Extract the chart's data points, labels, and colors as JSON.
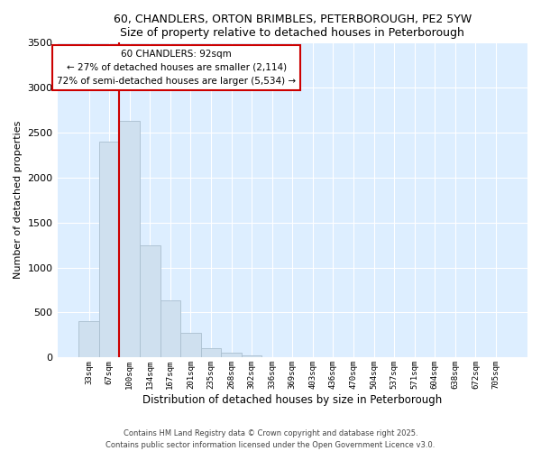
{
  "title": "60, CHANDLERS, ORTON BRIMBLES, PETERBOROUGH, PE2 5YW",
  "subtitle": "Size of property relative to detached houses in Peterborough",
  "xlabel": "Distribution of detached houses by size in Peterborough",
  "ylabel": "Number of detached properties",
  "bar_labels": [
    "33sqm",
    "67sqm",
    "100sqm",
    "134sqm",
    "167sqm",
    "201sqm",
    "235sqm",
    "268sqm",
    "302sqm",
    "336sqm",
    "369sqm",
    "403sqm",
    "436sqm",
    "470sqm",
    "504sqm",
    "537sqm",
    "571sqm",
    "604sqm",
    "638sqm",
    "672sqm",
    "705sqm"
  ],
  "bar_values": [
    400,
    2400,
    2630,
    1250,
    640,
    275,
    100,
    55,
    25,
    5,
    5,
    0,
    0,
    0,
    0,
    0,
    0,
    0,
    0,
    0,
    0
  ],
  "bar_color": "#cfe0ef",
  "bar_edge_color": "#aabfcf",
  "ylim": [
    0,
    3500
  ],
  "yticks": [
    0,
    500,
    1000,
    1500,
    2000,
    2500,
    3000,
    3500
  ],
  "vline_color": "#cc0000",
  "annotation_title": "60 CHANDLERS: 92sqm",
  "annotation_line1": "← 27% of detached houses are smaller (2,114)",
  "annotation_line2": "72% of semi-detached houses are larger (5,534) →",
  "annotation_box_facecolor": "#ffffff",
  "annotation_box_edgecolor": "#cc0000",
  "footer1": "Contains HM Land Registry data © Crown copyright and database right 2025.",
  "footer2": "Contains public sector information licensed under the Open Government Licence v3.0.",
  "bg_color": "#ffffff",
  "plot_bg_color": "#ddeeff"
}
